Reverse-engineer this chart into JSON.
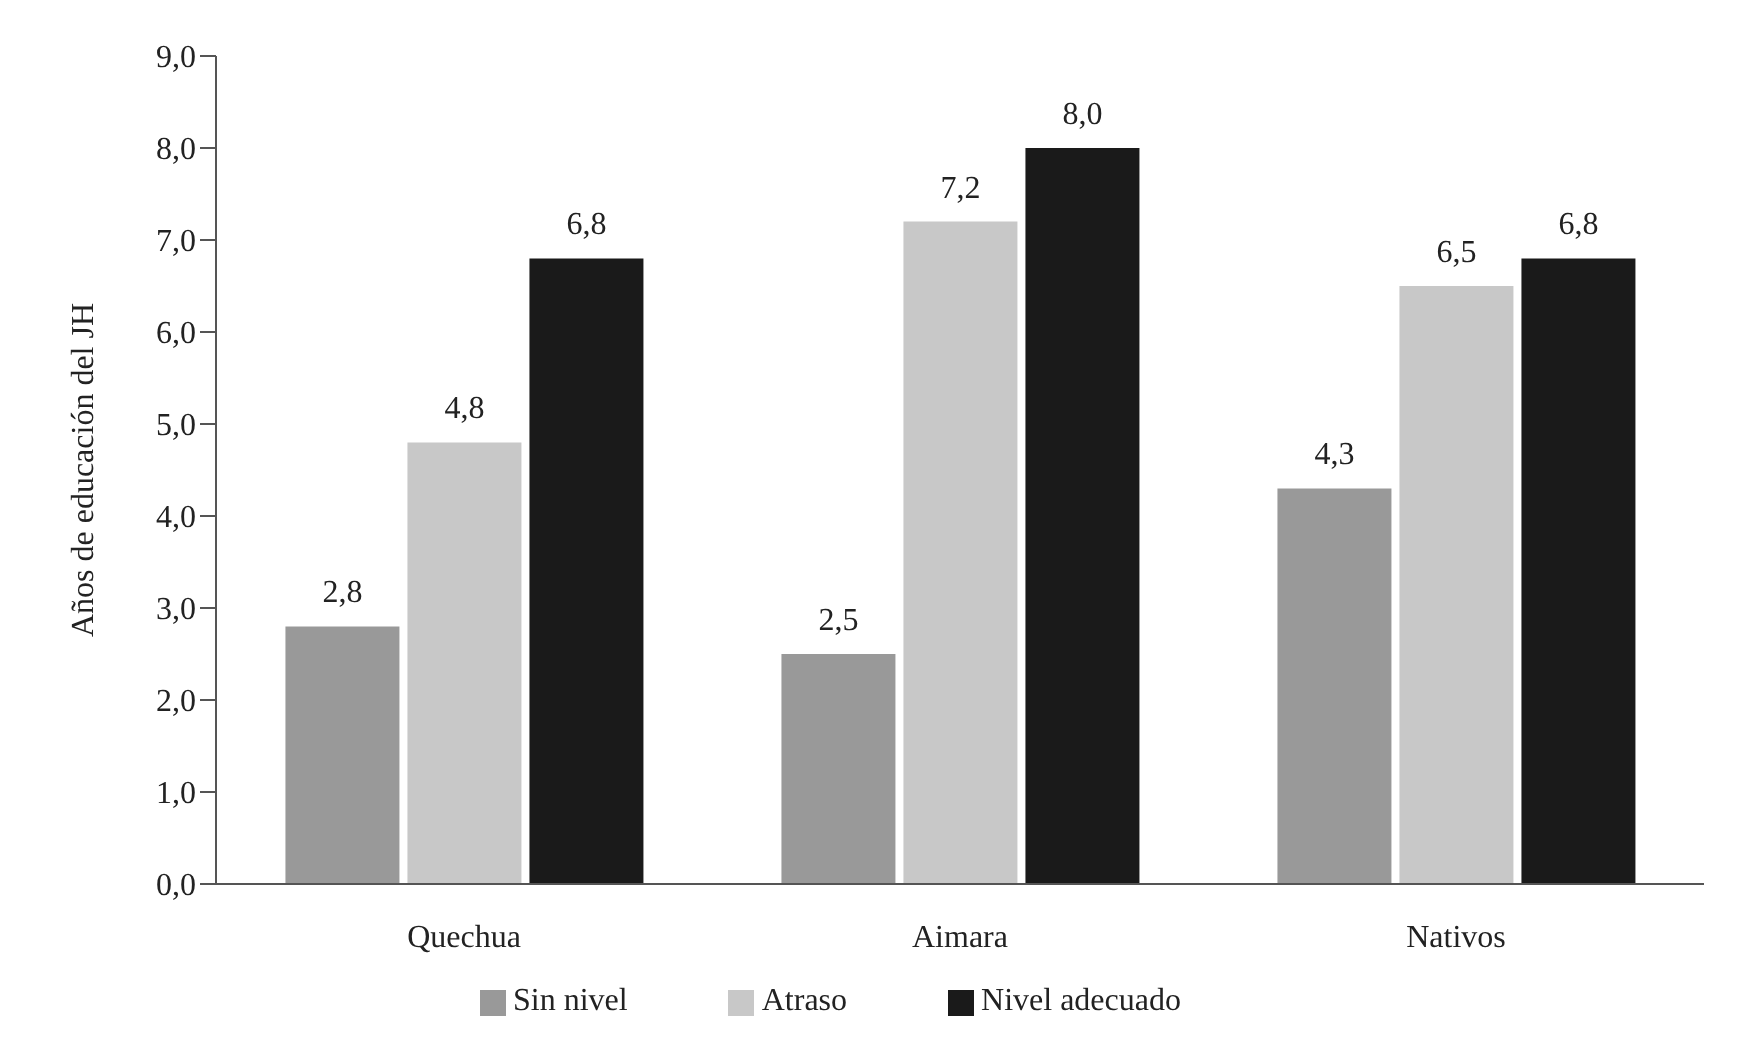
{
  "chart_data": {
    "type": "bar",
    "ylabel": "Años de educación del JH",
    "categories": [
      "Quechua",
      "Aimara",
      "Nativos"
    ],
    "series": [
      {
        "name": "Sin nivel",
        "color": "#999999",
        "values": [
          2.8,
          2.5,
          4.3
        ],
        "value_labels": [
          "2,8",
          "2,5",
          "4,3"
        ]
      },
      {
        "name": "Atraso",
        "color": "#c8c8c8",
        "values": [
          4.8,
          7.2,
          6.5
        ],
        "value_labels": [
          "4,8",
          "7,2",
          "6,5"
        ]
      },
      {
        "name": "Nivel adecuado",
        "color": "#1a1a1a",
        "values": [
          6.8,
          8.0,
          6.8
        ],
        "value_labels": [
          "6,8",
          "8,0",
          "6,8"
        ]
      }
    ],
    "ylim": [
      0,
      9
    ],
    "yticks": [
      {
        "value": 0,
        "label": "0,0"
      },
      {
        "value": 1,
        "label": "1,0"
      },
      {
        "value": 2,
        "label": "2,0"
      },
      {
        "value": 3,
        "label": "3,0"
      },
      {
        "value": 4,
        "label": "4,0"
      },
      {
        "value": 5,
        "label": "5,0"
      },
      {
        "value": 6,
        "label": "6,0"
      },
      {
        "value": 7,
        "label": "7,0"
      },
      {
        "value": 8,
        "label": "8,0"
      },
      {
        "value": 9,
        "label": "9,0"
      }
    ],
    "grid": false,
    "legend": "bottom"
  }
}
